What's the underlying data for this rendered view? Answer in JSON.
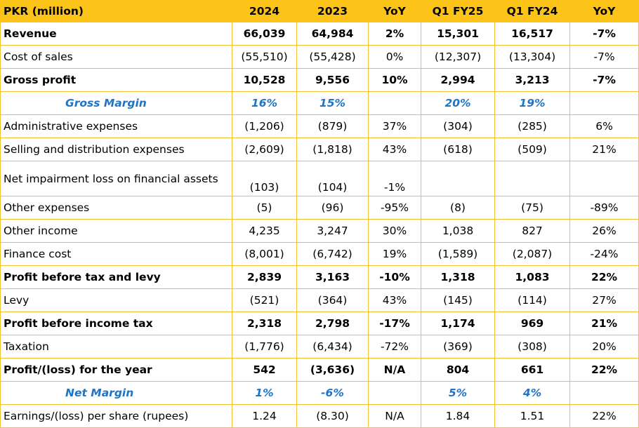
{
  "table": {
    "headers": [
      "PKR (million)",
      "2024",
      "2023",
      "YoY",
      "Q1 FY25",
      "Q1 FY24",
      "YoY"
    ],
    "rows": [
      {
        "label": "Revenue",
        "style": "bold",
        "cells": [
          "66,039",
          "64,984",
          "2%",
          "15,301",
          "16,517",
          "-7%"
        ]
      },
      {
        "label": "Cost of sales",
        "style": "normal",
        "cells": [
          "(55,510)",
          "(55,428)",
          "0%",
          "(12,307)",
          "(13,304)",
          "-7%"
        ]
      },
      {
        "label": "Gross profit",
        "style": "bold",
        "cells": [
          "10,528",
          "9,556",
          "10%",
          "2,994",
          "3,213",
          "-7%"
        ]
      },
      {
        "label": "Gross Margin",
        "style": "margin",
        "cells": [
          "16%",
          "15%",
          "",
          "20%",
          "19%",
          ""
        ]
      },
      {
        "label": "Administrative expenses",
        "style": "normal",
        "cells": [
          "(1,206)",
          "(879)",
          "37%",
          "(304)",
          "(285)",
          "6%"
        ]
      },
      {
        "label": "Selling and distribution expenses",
        "style": "normal",
        "cells": [
          "(2,609)",
          "(1,818)",
          "43%",
          "(618)",
          "(509)",
          "21%"
        ]
      },
      {
        "label": "Net impairment loss on financial assets",
        "style": "tall",
        "cells": [
          "(103)",
          "(104)",
          "-1%",
          "",
          "",
          ""
        ]
      },
      {
        "label": "Other expenses",
        "style": "normal",
        "cells": [
          "(5)",
          "(96)",
          "-95%",
          "(8)",
          "(75)",
          "-89%"
        ]
      },
      {
        "label": "Other income",
        "style": "normal",
        "cells": [
          "4,235",
          "3,247",
          "30%",
          "1,038",
          "827",
          "26%"
        ]
      },
      {
        "label": "Finance cost",
        "style": "normal",
        "cells": [
          "(8,001)",
          "(6,742)",
          "19%",
          "(1,589)",
          "(2,087)",
          "-24%"
        ]
      },
      {
        "label": "Profit before tax and levy",
        "style": "bold",
        "cells": [
          "2,839",
          "3,163",
          "-10%",
          "1,318",
          "1,083",
          "22%"
        ]
      },
      {
        "label": "Levy",
        "style": "normal",
        "cells": [
          "(521)",
          "(364)",
          "43%",
          "(145)",
          "(114)",
          "27%"
        ]
      },
      {
        "label": "Profit before income tax",
        "style": "bold",
        "cells": [
          "2,318",
          "2,798",
          "-17%",
          "1,174",
          "969",
          "21%"
        ]
      },
      {
        "label": "Taxation",
        "style": "normal",
        "cells": [
          "(1,776)",
          "(6,434)",
          "-72%",
          "(369)",
          "(308)",
          "20%"
        ]
      },
      {
        "label": "Profit/(loss) for the year",
        "style": "bold",
        "cells": [
          "542",
          "(3,636)",
          "N/A",
          "804",
          "661",
          "22%"
        ]
      },
      {
        "label": "Net Margin",
        "style": "margin",
        "cells": [
          "1%",
          "-6%",
          "",
          "5%",
          "4%",
          ""
        ]
      },
      {
        "label": "Earnings/(loss) per share (rupees)",
        "style": "normal",
        "cells": [
          "1.24",
          "(8.30)",
          "N/A",
          "1.84",
          "1.51",
          "22%"
        ]
      }
    ]
  },
  "colors": {
    "header_bg": "#fcc419",
    "border": "#f2c12e",
    "margin_text": "#1f74c6"
  }
}
